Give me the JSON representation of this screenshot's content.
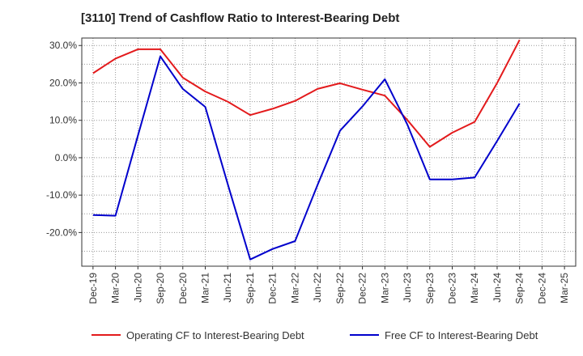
{
  "chart_data": {
    "type": "line",
    "title": "[3110]  Trend of Cashflow Ratio to Interest-Bearing Debt",
    "xlabel": "",
    "ylabel": "",
    "categories": [
      "Dec-19",
      "Mar-20",
      "Jun-20",
      "Sep-20",
      "Dec-20",
      "Mar-21",
      "Jun-21",
      "Sep-21",
      "Dec-21",
      "Mar-22",
      "Jun-22",
      "Sep-22",
      "Dec-22",
      "Mar-23",
      "Jun-23",
      "Sep-23",
      "Dec-23",
      "Mar-24",
      "Jun-24",
      "Sep-24",
      "Dec-24",
      "Mar-25"
    ],
    "yticks": [
      -20,
      -10,
      0,
      10,
      20,
      30
    ],
    "ytick_labels": [
      "-20.0%",
      "-10.0%",
      "0.0%",
      "10.0%",
      "20.0%",
      "30.0%"
    ],
    "ylim": [
      -29,
      32
    ],
    "grid": true,
    "legend_position": "bottom",
    "series": [
      {
        "name": "Operating CF to Interest-Bearing Debt",
        "color": "#e31a1c",
        "values": [
          22.6,
          26.5,
          29.0,
          29.0,
          21.4,
          17.7,
          15.0,
          11.4,
          13.1,
          15.2,
          18.4,
          19.9,
          18.2,
          16.6,
          10.1,
          2.9,
          6.7,
          9.6,
          20.0,
          31.5,
          null,
          null
        ]
      },
      {
        "name": "Free CF to Interest-Bearing Debt",
        "color": "#0000cc",
        "values": [
          -15.3,
          -15.5,
          5.9,
          27.1,
          18.4,
          13.6,
          -7.0,
          -27.2,
          -24.4,
          -22.3,
          -7.3,
          7.2,
          13.7,
          21.0,
          8.9,
          -5.8,
          -5.8,
          -5.3,
          4.5,
          14.5,
          null,
          null
        ]
      }
    ]
  }
}
